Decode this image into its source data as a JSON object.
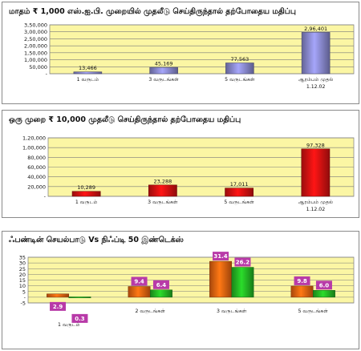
{
  "charts": [
    {
      "title": "மாதம் ₹ 1,000 எஸ்.ஐ.பி. முறையில்  முதலீடு செய்திருந்தால் தற்போதைய மதிப்பு"
    },
    {
      "title": "ஒரு முறை ₹ 10,000 முதலீடு செய்திருந்தால் தற்போதைய மதிப்பு"
    },
    {
      "title": "ஃபண்டின் செயல்பாடு Vs நிஃப்டி 50 இண்டெக்ஸ்"
    }
  ],
  "chart_data": [
    {
      "type": "bar",
      "title": "மாதம் ₹ 1,000 எஸ்.ஐ.பி. முறையில்  முதலீடு செய்திருந்தால் தற்போதைய மதிப்பு",
      "categories": [
        "1 வருடம்",
        "3 வருடங்கள்",
        "5 வருடங்கள்",
        "ஆரம்பம் முதல் 1.12.02"
      ],
      "values": [
        13466,
        45169,
        77563,
        296401
      ],
      "value_labels": [
        "13,466",
        "45,169",
        "77,563",
        "2,96,401"
      ],
      "colors": [
        "#8585c8",
        "#8585c8",
        "#8585c8",
        "#8585c8"
      ],
      "ylim": [
        0,
        350000
      ],
      "yticks": [
        "-",
        "50,000",
        "1,00,000",
        "1,50,000",
        "2,00,000",
        "2,50,000",
        "3,00,000",
        "3,50,000"
      ],
      "grid": true
    },
    {
      "type": "bar",
      "title": "ஒரு முறை ₹ 10,000 முதலீடு செய்திருந்தால் தற்போதைய மதிப்பு",
      "categories": [
        "1 வருடம்",
        "3 வருடங்கள்",
        "5 வருடங்கள்",
        "ஆரம்பம் முதல் 1.12.02"
      ],
      "values": [
        10289,
        23288,
        17011,
        97328
      ],
      "value_labels": [
        "10,289",
        "23,288",
        "17,011",
        "97,328"
      ],
      "colors": [
        "#cc1111",
        "#cc1111",
        "#cc1111",
        "#cc1111"
      ],
      "ylim": [
        0,
        120000
      ],
      "yticks": [
        "-",
        "20,000",
        "40,000",
        "60,000",
        "80,000",
        "1,00,000",
        "1,20,000"
      ],
      "grid": true
    },
    {
      "type": "bar",
      "title": "ஃபண்டின் செயல்பாடு Vs நிஃப்டி 50 இண்டெக்ஸ்",
      "categories": [
        "1 வருடம்",
        "2 வருடங்கள்",
        "3 வருடங்கள்",
        "5 வருடங்கள்"
      ],
      "series": [
        {
          "values": [
            2.9,
            9.4,
            31.4,
            9.8
          ],
          "labels": [
            "2.9",
            "9.4",
            "31.4",
            "9.8"
          ],
          "color": "#e06010"
        },
        {
          "values": [
            0.3,
            6.4,
            26.2,
            6.0
          ],
          "labels": [
            "0.3",
            "6.4",
            "26.2",
            "6.0"
          ],
          "color": "#22b022"
        }
      ],
      "label_box_color": "#b83aa8",
      "ylim": [
        -10,
        35
      ],
      "yticks": [
        "-5",
        "-",
        "5",
        "10",
        "15",
        "20",
        "25",
        "30",
        "35"
      ],
      "grid": true
    }
  ]
}
